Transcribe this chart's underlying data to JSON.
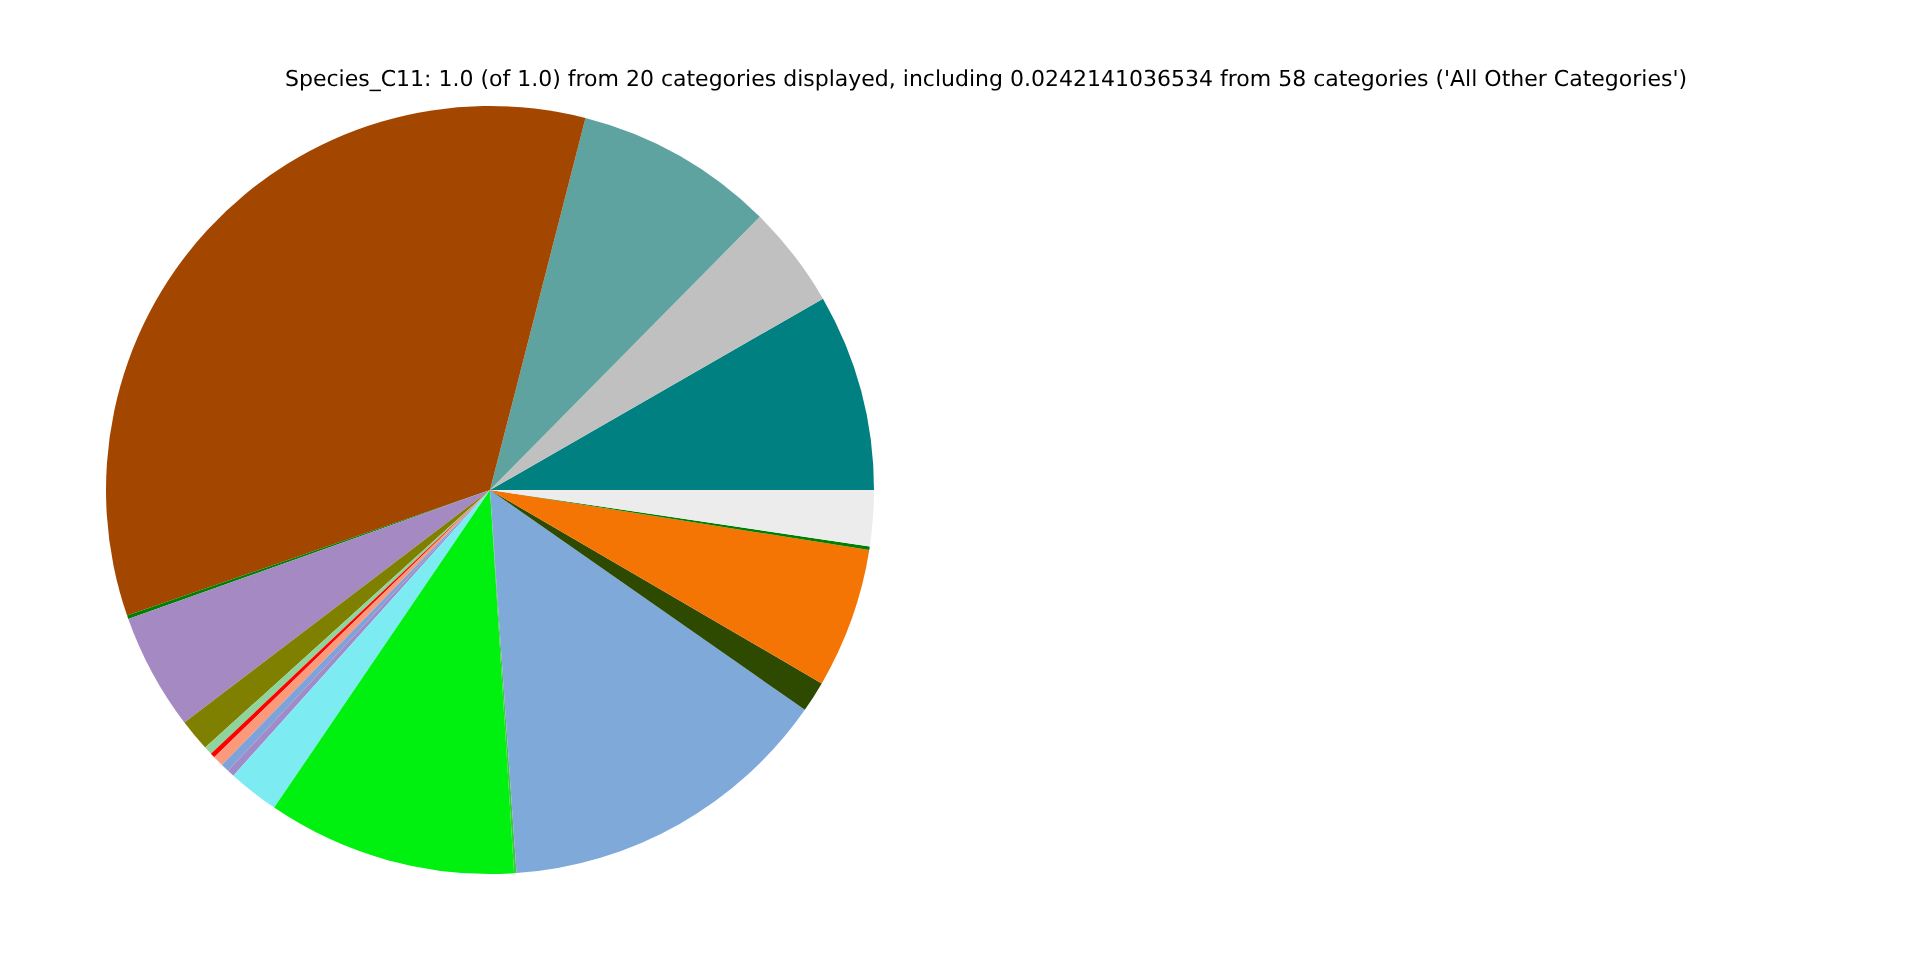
{
  "chart_data": {
    "type": "pie",
    "title": "Species_C11: 1.0 (of 1.0) from 20 categories displayed, including 0.0242141036534 from 58 categories ('All Other Categories')",
    "categories": [
      null,
      null,
      null,
      null,
      null,
      null,
      null,
      null,
      null,
      null,
      null,
      null,
      null,
      null,
      null,
      null,
      null,
      null,
      null,
      null
    ],
    "values": [
      8.3,
      4.3,
      8.4,
      34.3,
      0.15,
      4.9,
      1.35,
      0.35,
      0.2,
      0.45,
      0.35,
      0.3,
      2.15,
      10.5,
      0.1,
      14.2,
      1.3,
      5.9,
      0.15,
      2.35
    ],
    "colors": [
      "#008080",
      "#c0c0c0",
      "#5fa3a0",
      "#a34700",
      "#008000",
      "#a589c2",
      "#808000",
      "#8fd49b",
      "#ff0000",
      "#fa9a7a",
      "#7fa3d8",
      "#a08ac8",
      "#7decf2",
      "#00f010",
      "#3cc83c",
      "#7fa9d9",
      "#2d4a00",
      "#f47404",
      "#008000",
      "#ececec"
    ]
  }
}
